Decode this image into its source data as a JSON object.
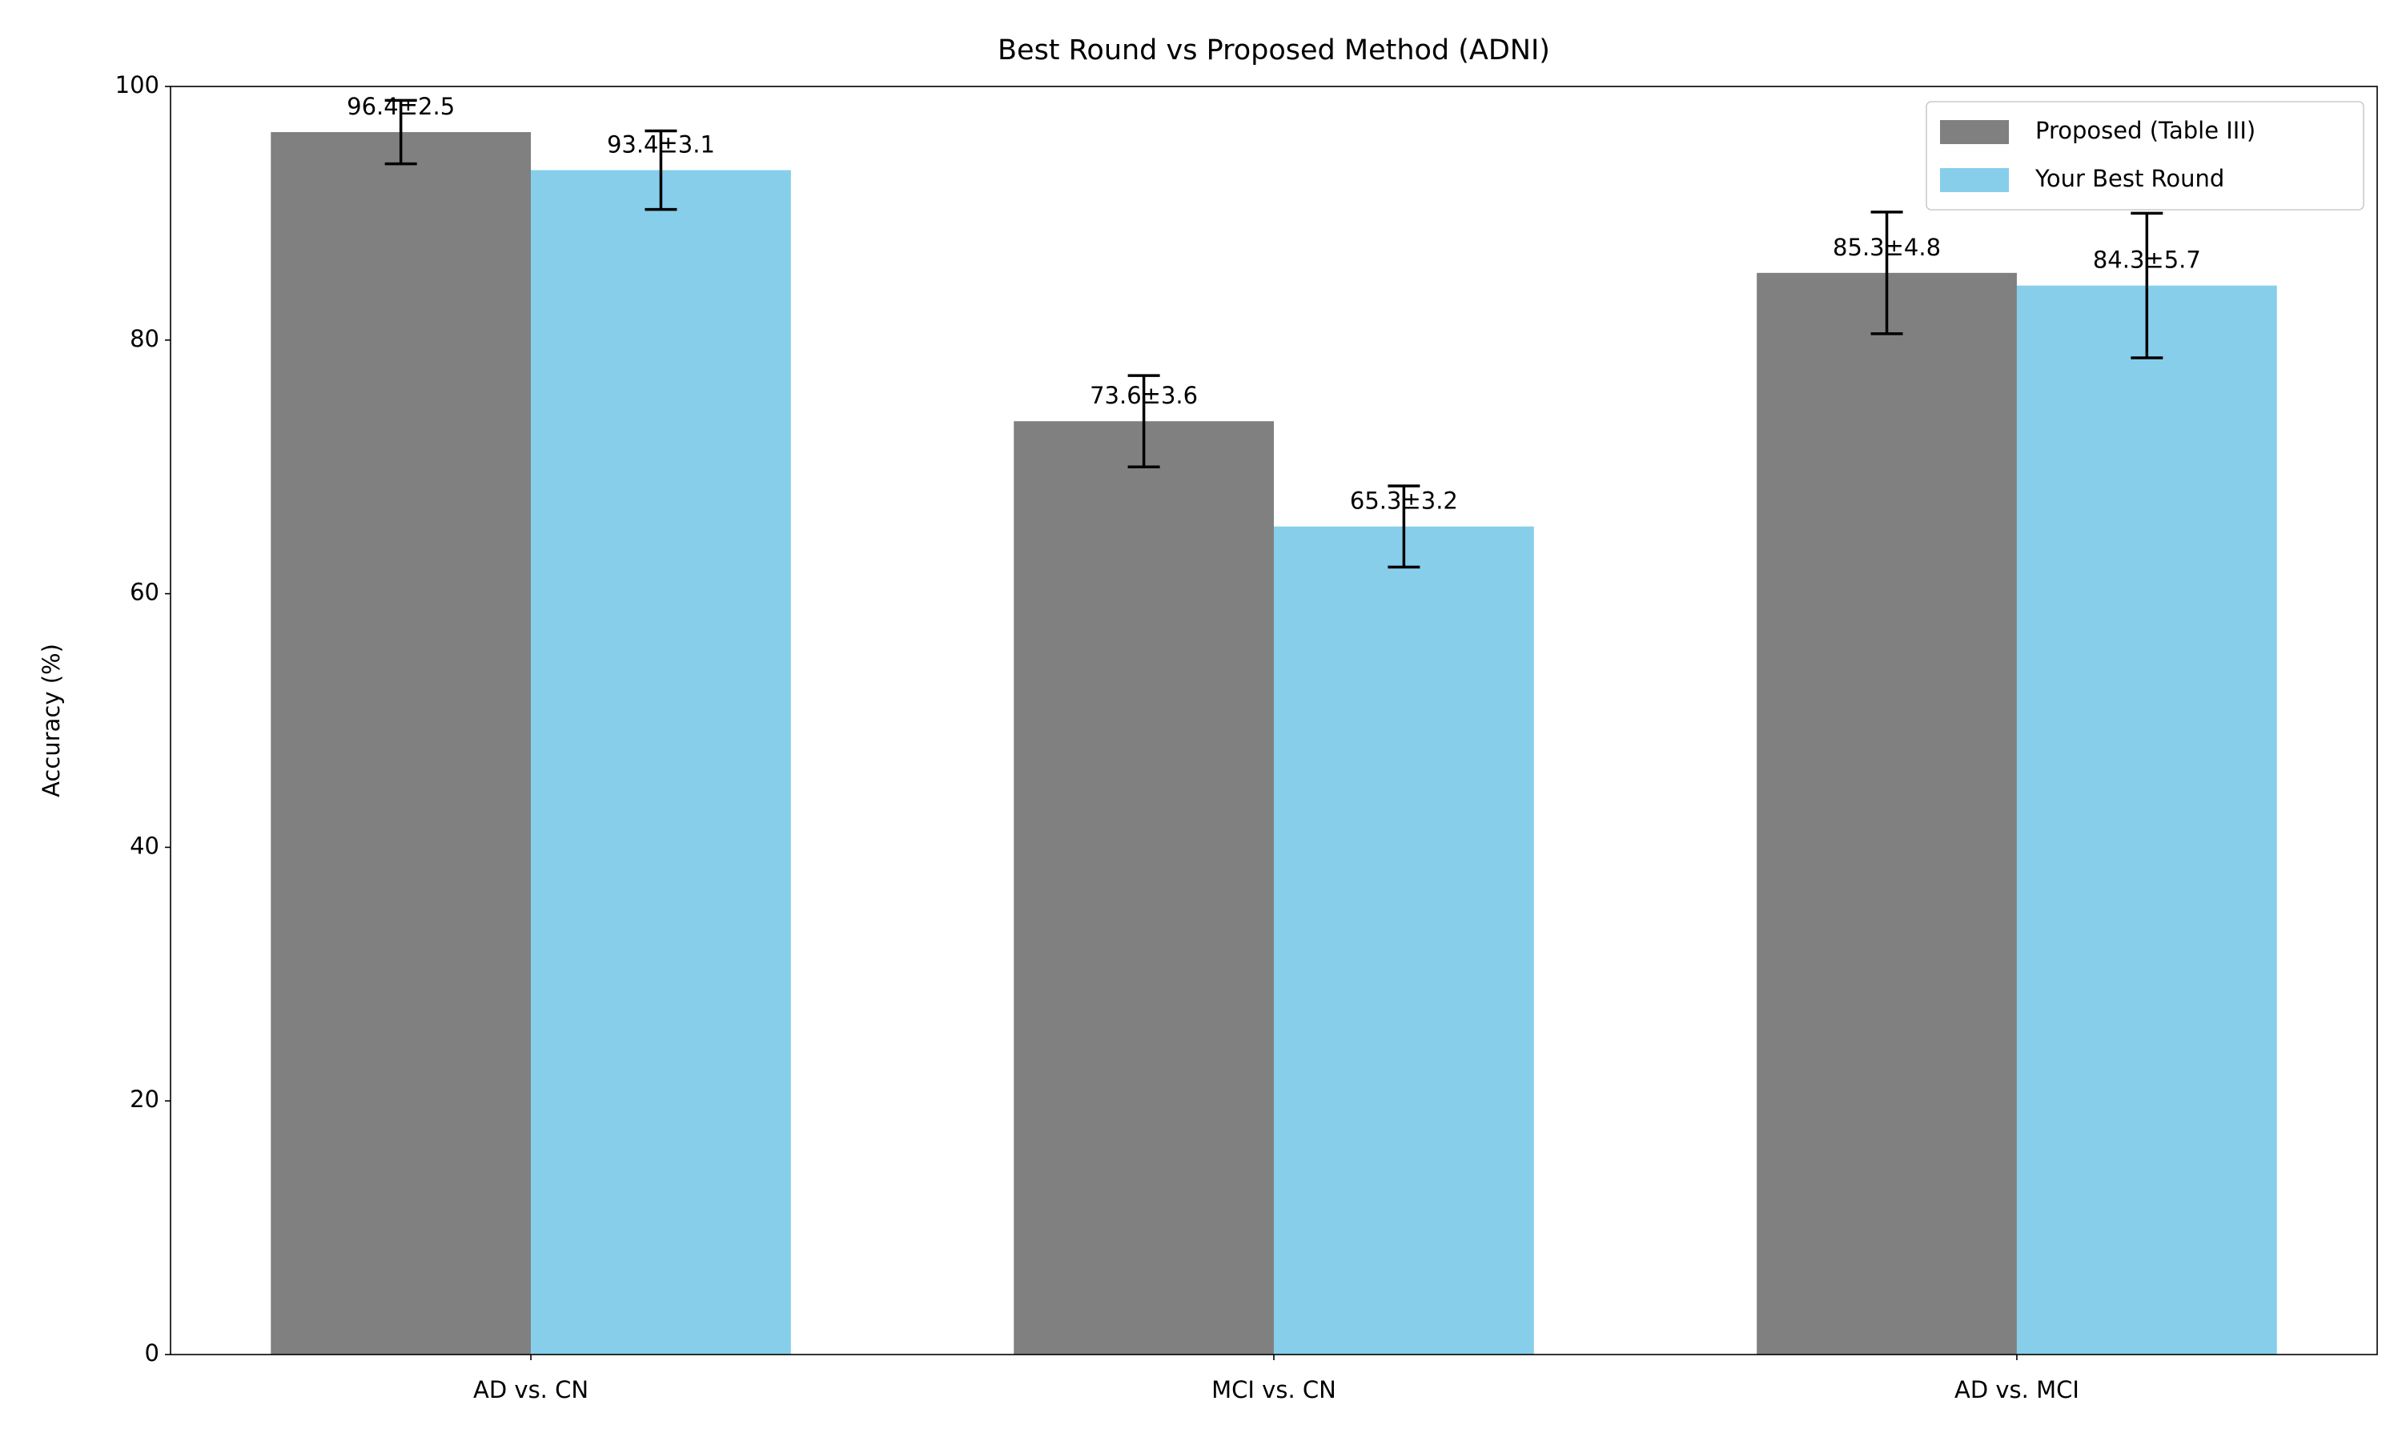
{
  "chart_data": {
    "type": "bar",
    "title": "Best Round vs Proposed Method (ADNI)",
    "y_label": "Accuracy (%)",
    "categories": [
      "AD vs. CN",
      "MCI vs. CN",
      "AD vs. MCI"
    ],
    "series": [
      {
        "name": "Proposed (Table III)",
        "color": "#808080",
        "values": [
          96.4,
          73.6,
          85.3
        ],
        "errors": [
          2.5,
          3.6,
          4.8
        ],
        "value_labels": [
          "96.4±2.5",
          "73.6±3.6",
          "85.3±4.8"
        ]
      },
      {
        "name": "Your Best Round",
        "color": "#87ceeb",
        "values": [
          93.4,
          65.3,
          84.3
        ],
        "errors": [
          3.1,
          3.2,
          5.7
        ],
        "value_labels": [
          "93.4±3.1",
          "65.3±3.2",
          "84.3±5.7"
        ]
      }
    ],
    "ylim": [
      0,
      100
    ],
    "yticks": [
      0,
      20,
      40,
      60,
      80,
      100
    ],
    "legend": "upper right",
    "grid": false
  }
}
